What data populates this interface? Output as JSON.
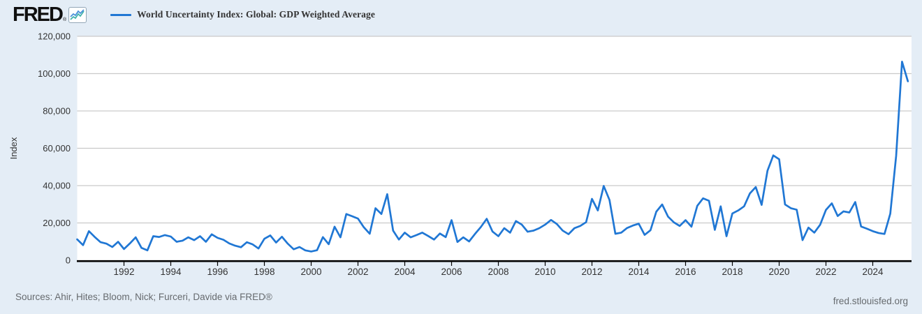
{
  "header": {
    "logo_text": "FRED",
    "registered_mark": "®",
    "series_label": "World Uncertainty Index: Global: GDP Weighted Average"
  },
  "footer": {
    "sources": "Sources: Ahir, Hites; Bloom, Nick; Furceri, Davide via FRED®",
    "site": "fred.stlouisfed.org"
  },
  "colors": {
    "background": "#e4edf6",
    "plot_background": "#ffffff",
    "line": "#2077d4",
    "grid": "#c9c9c9",
    "axis": "#000000",
    "tick_text": "#333333",
    "footer_text": "#666a6e"
  },
  "chart_data": {
    "type": "line",
    "title": "World Uncertainty Index: Global: GDP Weighted Average",
    "xlabel": "",
    "ylabel": "Index",
    "ylim": [
      0,
      120000
    ],
    "y_ticks": [
      0,
      20000,
      40000,
      60000,
      80000,
      100000,
      120000
    ],
    "x_ticks": [
      1992,
      1994,
      1996,
      1998,
      2000,
      2002,
      2004,
      2006,
      2008,
      2010,
      2012,
      2014,
      2016,
      2018,
      2020,
      2022,
      2024
    ],
    "grid": true,
    "legend_position": "top-left",
    "frequency": "quarterly",
    "x_start": 1990.0,
    "x_step": 0.25,
    "x_end": 2025.5,
    "series": [
      {
        "name": "World Uncertainty Index: Global: GDP Weighted Average",
        "values": [
          11200,
          8100,
          15600,
          12500,
          9700,
          8900,
          7100,
          9900,
          6000,
          9000,
          12300,
          6600,
          5300,
          12900,
          12500,
          13500,
          12700,
          9900,
          10500,
          12300,
          10800,
          12900,
          9900,
          13900,
          12000,
          11000,
          9000,
          7800,
          7000,
          9700,
          8500,
          6300,
          11500,
          13300,
          9500,
          12600,
          8900,
          5900,
          7100,
          5300,
          4700,
          5400,
          12400,
          8600,
          18000,
          12300,
          24800,
          23600,
          22300,
          17700,
          14200,
          27900,
          24800,
          35400,
          15900,
          11100,
          14800,
          12300,
          13500,
          14800,
          13000,
          11100,
          14300,
          12400,
          21500,
          9800,
          12300,
          10100,
          14100,
          17800,
          22200,
          15400,
          12900,
          17200,
          14800,
          21000,
          19100,
          15300,
          15900,
          17200,
          19100,
          21600,
          19400,
          15900,
          14000,
          17200,
          18400,
          20400,
          32900,
          26700,
          39800,
          32300,
          14200,
          14800,
          17300,
          18600,
          19600,
          13600,
          16100,
          26000,
          29900,
          23400,
          20300,
          18400,
          21500,
          18000,
          29200,
          33200,
          31900,
          16300,
          28900,
          12900,
          25100,
          26700,
          28900,
          35800,
          39200,
          29700,
          48000,
          56200,
          54100,
          29900,
          27900,
          27100,
          10800,
          17500,
          14800,
          19000,
          27000,
          30500,
          23700,
          26200,
          25600,
          31200,
          18100,
          16900,
          15600,
          14600,
          14100,
          25000,
          56000,
          106400,
          95900
        ]
      }
    ]
  }
}
